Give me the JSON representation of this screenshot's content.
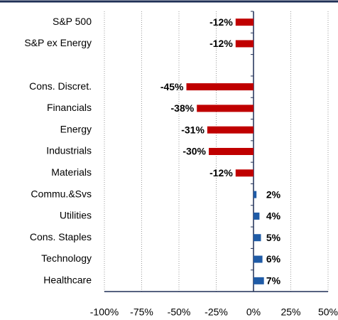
{
  "chart_data": {
    "type": "bar",
    "orientation": "horizontal",
    "categories": [
      "S&P 500",
      "S&P ex Energy",
      null,
      "Cons. Discret.",
      "Financials",
      "Energy",
      "Industrials",
      "Materials",
      "Commu.&Svs",
      "Utilities",
      "Cons. Staples",
      "Technology",
      "Healthcare"
    ],
    "values": [
      -12,
      -12,
      null,
      -45,
      -38,
      -31,
      -30,
      -12,
      2,
      4,
      5,
      6,
      7
    ],
    "value_labels": [
      "-12%",
      "-12%",
      null,
      "-45%",
      "-38%",
      "-31%",
      "-30%",
      "-12%",
      "2%",
      "4%",
      "5%",
      "6%",
      "7%"
    ],
    "negative_color": "#c00000",
    "positive_color": "#1f5ba6",
    "xlim": [
      -100,
      50
    ],
    "xticks": [
      {
        "value": -100,
        "label": "-100%"
      },
      {
        "value": -75,
        "label": "-75%"
      },
      {
        "value": -50,
        "label": "-50%"
      },
      {
        "value": -25,
        "label": "-25%"
      },
      {
        "value": 0,
        "label": "0%"
      },
      {
        "value": 25,
        "label": "25%"
      },
      {
        "value": 50,
        "label": "50%"
      }
    ],
    "grid": true
  }
}
